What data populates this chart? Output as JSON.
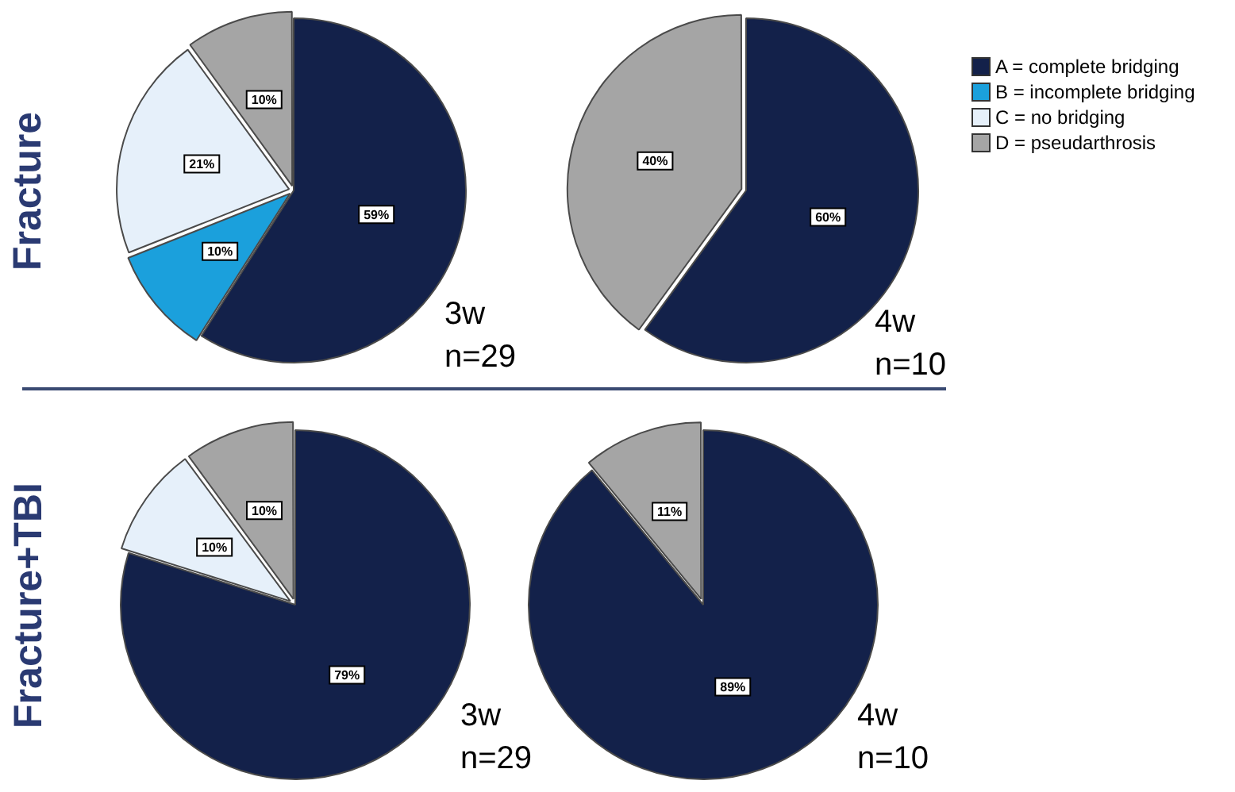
{
  "chart_data": [
    {
      "type": "pie",
      "ylabel": "Fracture",
      "legend": "right",
      "annotations": [
        "3w",
        "n=29"
      ],
      "categories": [
        "A = complete bridging",
        "B = incomplete bridging",
        "C = no bridging",
        "D = pseudarthrosis"
      ],
      "values": [
        59,
        10,
        21,
        10
      ],
      "colors": [
        "#13214a",
        "#1ba0dc",
        "#e6f0fa",
        "#a5a5a5"
      ],
      "value_labels": [
        "59%",
        "10%",
        "21%",
        "10%"
      ]
    },
    {
      "type": "pie",
      "annotations": [
        "4w",
        "n=10"
      ],
      "categories": [
        null,
        null
      ],
      "values": [
        60,
        40
      ],
      "colors": [
        "#13214a",
        "#a5a5a5"
      ],
      "value_labels": [
        "60%",
        "40%"
      ]
    },
    {
      "type": "pie",
      "ylabel": "Fracture+TBI",
      "annotations": [
        "3w",
        "n=29"
      ],
      "categories": [
        null,
        null,
        null
      ],
      "values": [
        79,
        10,
        10
      ],
      "colors": [
        "#13214a",
        "#e6f0fa",
        "#a5a5a5"
      ],
      "value_labels": [
        "79%",
        "10%",
        "10%"
      ]
    },
    {
      "type": "pie",
      "annotations": [
        "4w",
        "n=10"
      ],
      "categories": [
        null,
        null
      ],
      "values": [
        89,
        11
      ],
      "colors": [
        "#13214a",
        "#a5a5a5"
      ],
      "value_labels": [
        "89%",
        "11%"
      ]
    }
  ]
}
